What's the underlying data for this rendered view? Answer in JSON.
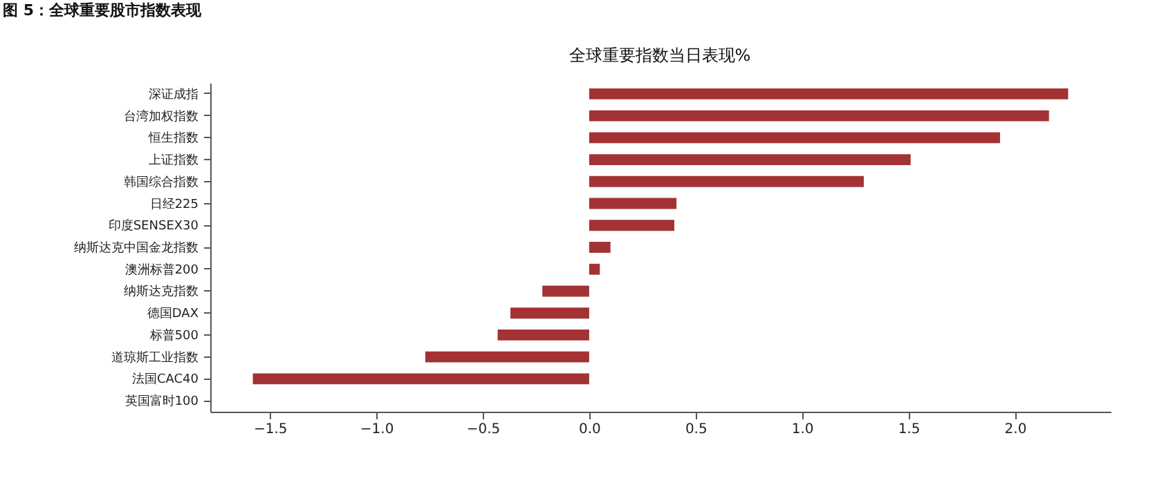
{
  "chart_data": {
    "type": "bar",
    "orientation": "horizontal",
    "title": "全球重要指数当日表现%",
    "annotations": [
      "图 5：全球重要股市指数表现"
    ],
    "categories": [
      "深证成指",
      "台湾加权指数",
      "恒生指数",
      "上证指数",
      "韩国综合指数",
      "日经225",
      "印度SENSEX30",
      "纳斯达克中国金龙指数",
      "澳洲标普200",
      "纳斯达克指数",
      "德国DAX",
      "标普500",
      "道琼斯工业指数",
      "法国CAC40",
      "英国富时100"
    ],
    "values": [
      2.25,
      2.16,
      1.93,
      1.51,
      1.29,
      0.41,
      0.4,
      0.1,
      0.05,
      -0.22,
      -0.37,
      -0.43,
      -0.77,
      -1.58,
      0
    ],
    "color": "#a33234",
    "xlim": [
      -1.78,
      2.45
    ],
    "xticks": [
      {
        "value": -1.5,
        "label": "−1.5"
      },
      {
        "value": -1.0,
        "label": "−1.0"
      },
      {
        "value": -0.5,
        "label": "−0.5"
      },
      {
        "value": 0,
        "label": "0.0"
      },
      {
        "value": 0.5,
        "label": "0.5"
      },
      {
        "value": 1.0,
        "label": "1.0"
      },
      {
        "value": 1.5,
        "label": "1.5"
      },
      {
        "value": 2.0,
        "label": "2.0"
      }
    ],
    "grid": false
  }
}
